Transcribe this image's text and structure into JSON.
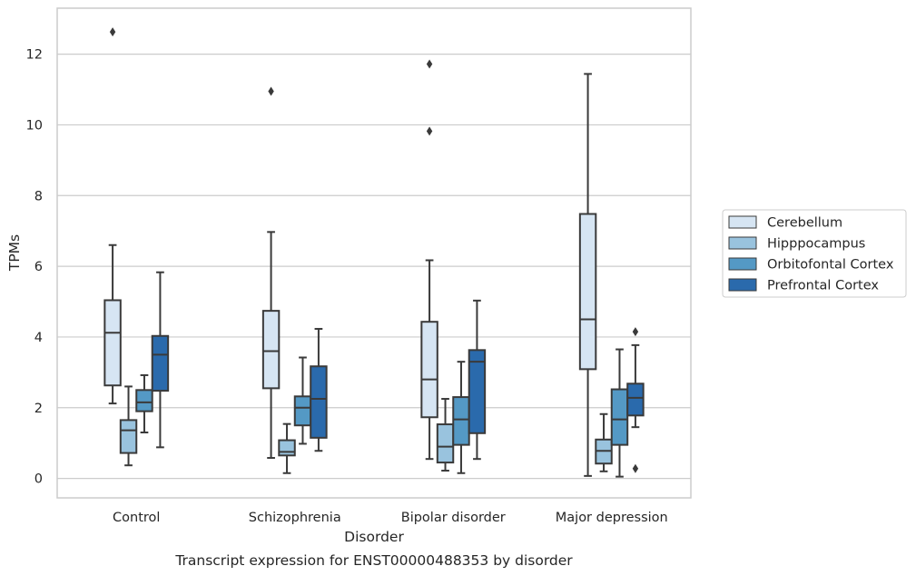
{
  "chart_data": {
    "type": "box",
    "title": "",
    "caption": "Transcript expression for ENST00000488353 by disorder",
    "xlabel": "Disorder",
    "ylabel": "TPMs",
    "ylim": [
      -0.55,
      13.3
    ],
    "yticks": [
      0,
      2,
      4,
      6,
      8,
      10,
      12
    ],
    "grid": "horizontal",
    "legend_position": "right",
    "categories": [
      "Control",
      "Schizophrenia",
      "Bipolar disorder",
      "Major depression"
    ],
    "series": [
      {
        "name": "Cerebellum",
        "color": "#d6e5f3",
        "boxes": [
          {
            "whislo": 2.12,
            "q1": 2.63,
            "med": 4.12,
            "q3": 5.04,
            "whishi": 6.6,
            "fliers": [
              12.63
            ]
          },
          {
            "whislo": 0.58,
            "q1": 2.55,
            "med": 3.6,
            "q3": 4.74,
            "whishi": 6.97,
            "fliers": [
              10.95
            ]
          },
          {
            "whislo": 0.55,
            "q1": 1.73,
            "med": 2.8,
            "q3": 4.43,
            "whishi": 6.17,
            "fliers": [
              9.82,
              11.72
            ]
          },
          {
            "whislo": 0.07,
            "q1": 3.09,
            "med": 4.5,
            "q3": 7.48,
            "whishi": 11.44,
            "fliers": []
          }
        ]
      },
      {
        "name": "Hipppocampus",
        "color": "#99c3de",
        "boxes": [
          {
            "whislo": 0.37,
            "q1": 0.72,
            "med": 1.36,
            "q3": 1.65,
            "whishi": 2.6,
            "fliers": []
          },
          {
            "whislo": 0.15,
            "q1": 0.65,
            "med": 0.75,
            "q3": 1.08,
            "whishi": 1.54,
            "fliers": []
          },
          {
            "whislo": 0.22,
            "q1": 0.45,
            "med": 0.9,
            "q3": 1.53,
            "whishi": 2.25,
            "fliers": []
          },
          {
            "whislo": 0.2,
            "q1": 0.42,
            "med": 0.78,
            "q3": 1.1,
            "whishi": 1.82,
            "fliers": []
          }
        ]
      },
      {
        "name": "Orbitofontal Cortex",
        "color": "#5499c5",
        "boxes": [
          {
            "whislo": 1.3,
            "q1": 1.9,
            "med": 2.15,
            "q3": 2.5,
            "whishi": 2.92,
            "fliers": []
          },
          {
            "whislo": 0.98,
            "q1": 1.5,
            "med": 2.0,
            "q3": 2.32,
            "whishi": 3.42,
            "fliers": []
          },
          {
            "whislo": 0.15,
            "q1": 0.95,
            "med": 1.67,
            "q3": 2.3,
            "whishi": 3.3,
            "fliers": []
          },
          {
            "whislo": 0.05,
            "q1": 0.95,
            "med": 1.67,
            "q3": 2.52,
            "whishi": 3.65,
            "fliers": []
          }
        ]
      },
      {
        "name": "Prefrontal Cortex",
        "color": "#2a6aac",
        "boxes": [
          {
            "whislo": 0.88,
            "q1": 2.48,
            "med": 3.5,
            "q3": 4.03,
            "whishi": 5.83,
            "fliers": []
          },
          {
            "whislo": 0.78,
            "q1": 1.15,
            "med": 2.25,
            "q3": 3.17,
            "whishi": 4.23,
            "fliers": []
          },
          {
            "whislo": 0.55,
            "q1": 1.28,
            "med": 3.3,
            "q3": 3.63,
            "whishi": 5.03,
            "fliers": []
          },
          {
            "whislo": 1.45,
            "q1": 1.78,
            "med": 2.28,
            "q3": 2.68,
            "whishi": 3.77,
            "fliers": [
              0.28,
              4.15
            ]
          }
        ]
      }
    ]
  }
}
